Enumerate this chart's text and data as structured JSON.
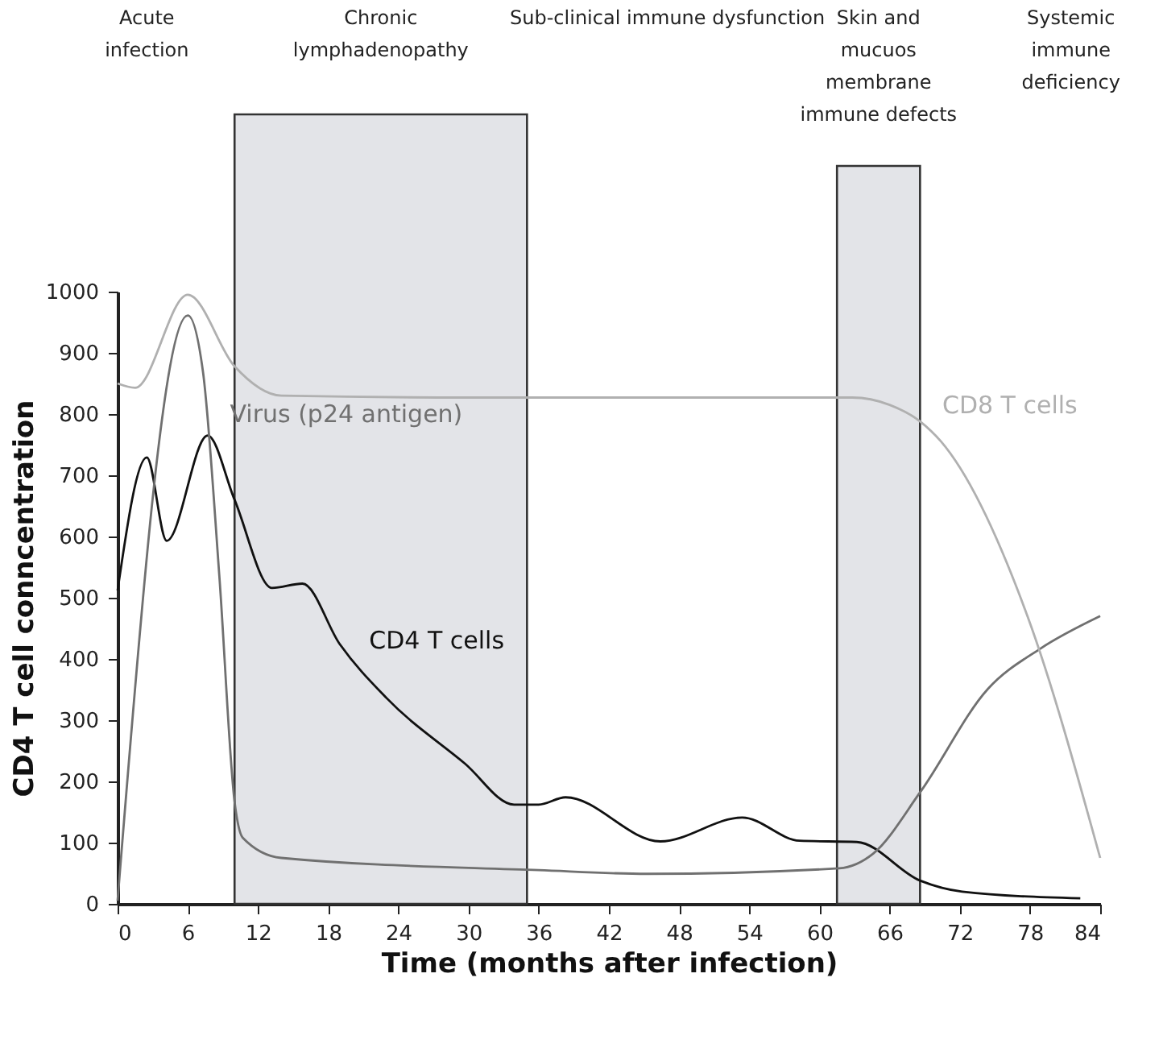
{
  "chart_data": {
    "type": "line",
    "xlabel": "Time (months after infection)",
    "ylabel": "CD4 T cell conncentration",
    "xlim": [
      0,
      84
    ],
    "xticks": [
      0,
      6,
      12,
      18,
      24,
      30,
      36,
      42,
      48,
      54,
      60,
      66,
      72,
      78,
      84
    ],
    "ylim": [
      0,
      1000
    ],
    "yticks": [
      0,
      100,
      200,
      300,
      400,
      500,
      600,
      700,
      800,
      900,
      1000
    ],
    "grid": false,
    "marker": "none",
    "line_style": "solid",
    "series": [
      {
        "name": "CD4 T cells",
        "color": "#111111",
        "x": [
          0,
          2.5,
          4.2,
          7.7,
          10,
          13.2,
          15.8,
          19,
          23,
          29.7,
          33.9,
          36,
          38.3,
          46.4,
          53.4,
          58.3,
          63.2,
          68.6,
          72.2,
          82.3
        ],
        "values": [
          512,
          729,
          593,
          765,
          660,
          516,
          523,
          424,
          336,
          229,
          162,
          162,
          174,
          102,
          141,
          103,
          101,
          38,
          20,
          9
        ]
      },
      {
        "name": "Virus (p24 antigen)",
        "color": "#707070",
        "x": [
          0,
          6,
          7.3,
          8.7,
          10,
          10.7,
          14,
          36,
          45.3,
          61.7,
          64.6,
          68.6,
          74.4,
          78.9,
          84
        ],
        "values": [
          5,
          961,
          869,
          535,
          167,
          108,
          75,
          55,
          49,
          58,
          82,
          182,
          351,
          417,
          470
        ]
      },
      {
        "name": "CD8 T cells",
        "color": "#b0b0b0",
        "x": [
          0,
          1.5,
          6,
          10,
          14,
          30,
          62.8,
          66,
          68.6,
          70.4,
          77.8,
          84
        ],
        "values": [
          850,
          843,
          995,
          878,
          830,
          827,
          827,
          815,
          788,
          755,
          469,
          75
        ]
      }
    ],
    "bands": [
      {
        "axis": "x",
        "from": 10,
        "to": 35,
        "label": "Chronic lymphadenopathy",
        "color": "#e3e4e8"
      },
      {
        "axis": "x",
        "from": 61.5,
        "to": 68.6,
        "label": "Skin and mucuos membrane immune defects",
        "color": "#e3e4e8"
      }
    ],
    "annotations": [
      "Acute infection",
      "Sub-clinical immune dysfunction",
      "Systemic immune deficiency"
    ]
  }
}
